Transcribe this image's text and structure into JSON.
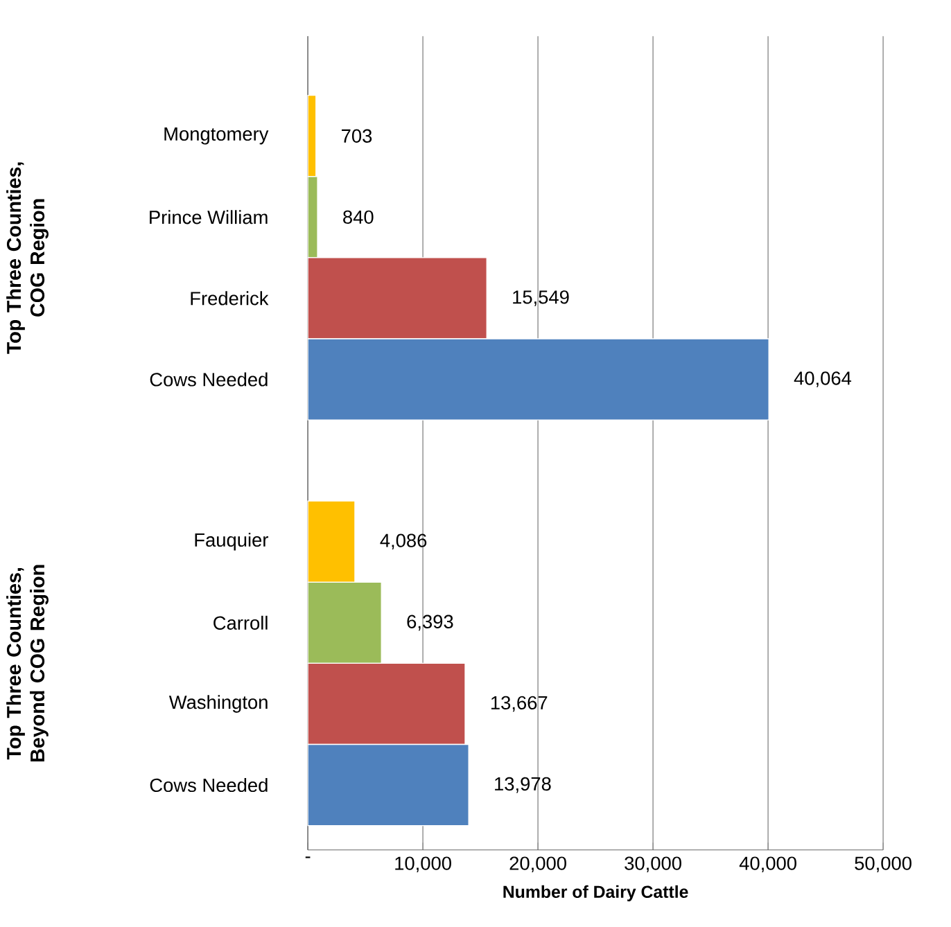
{
  "chart_data": {
    "type": "bar",
    "orientation": "horizontal",
    "xlabel": "Number of Dairy Cattle",
    "categories": [
      "Mongtomery",
      "Prince William",
      "Frederick",
      "Cows Needed",
      null,
      "Fauquier",
      "Carroll",
      "Washington",
      "Cows Needed"
    ],
    "values": [
      703,
      840,
      15549,
      40064,
      null,
      4086,
      6393,
      13667,
      13978
    ],
    "colors": [
      "#ffc000",
      "#9bbb59",
      "#c0504d",
      "#4f81bd",
      "#ffffff",
      "#ffc000",
      "#9bbb59",
      "#c0504d",
      "#4f81bd"
    ],
    "value_labels": [
      "703",
      "840",
      "15,549",
      "40,064",
      null,
      "4,086",
      "6,393",
      "13,667",
      "13,978"
    ],
    "xlim": [
      0,
      50000
    ],
    "xticks": [
      {
        "value": 0,
        "label": "-"
      },
      {
        "value": 10000,
        "label": "10,000"
      },
      {
        "value": 20000,
        "label": "20,000"
      },
      {
        "value": 30000,
        "label": "30,000"
      },
      {
        "value": 40000,
        "label": "40,000"
      },
      {
        "value": 50000,
        "label": "50,000"
      }
    ],
    "grid": "x",
    "annotations": [
      "Top Three Counties, COG Region",
      "Top Three Counties, Beyond COG Region"
    ]
  }
}
